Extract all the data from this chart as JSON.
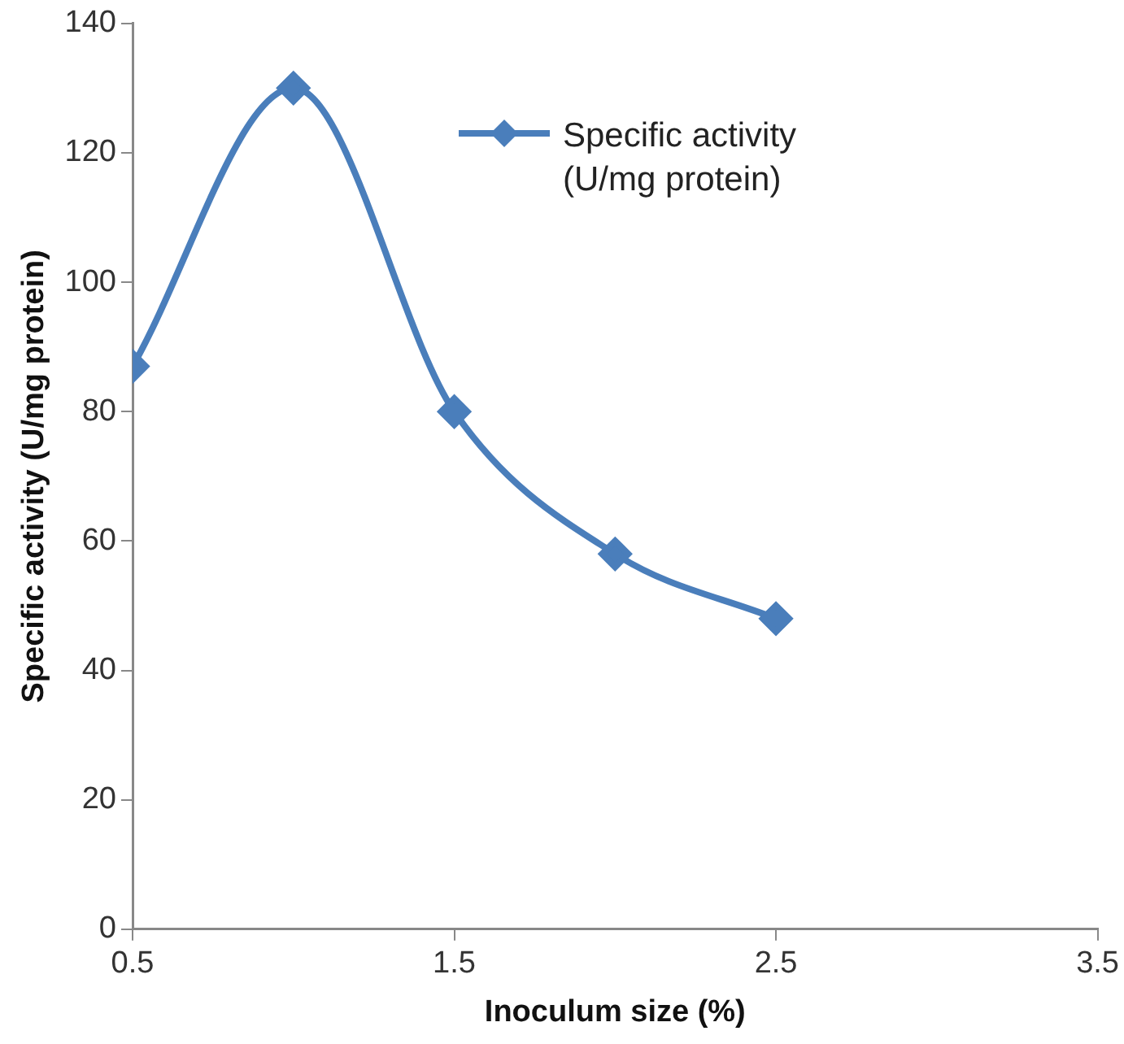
{
  "chart_data": {
    "type": "line",
    "xlabel": "Inoculum size (%)",
    "ylabel": "Specific activity (U/mg protein)",
    "x": [
      0.5,
      1,
      1.5,
      2,
      2.5
    ],
    "series": [
      {
        "name": "Specific activity (U/mg protein)",
        "color": "#4a7ebb",
        "values": [
          87,
          130,
          80,
          58,
          48
        ]
      }
    ],
    "xlim": [
      0.5,
      3.5
    ],
    "xticks": [
      0.5,
      1.5,
      2.5,
      3.5
    ],
    "ylim": [
      0,
      140
    ],
    "yticks": [
      0,
      20,
      40,
      60,
      80,
      100,
      120,
      140
    ],
    "grid": false,
    "legend": "top",
    "marker": "diamond",
    "line_style": "solid"
  }
}
